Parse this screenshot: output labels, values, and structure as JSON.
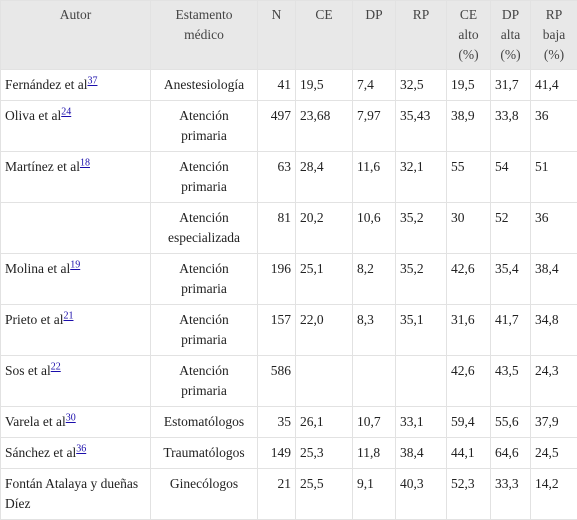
{
  "table": {
    "headers": [
      "Autor",
      "Estamento médico",
      "N",
      "CE",
      "DP",
      "RP",
      "CE alto (%)",
      "DP alta (%)",
      "RP baja (%)"
    ],
    "rows": [
      [
        {
          "name": "Fernández et al",
          "ref": "37"
        },
        "Anestesiología",
        "41",
        "19,5",
        "7,4",
        "32,5",
        "19,5",
        "31,7",
        "41,4"
      ],
      [
        {
          "name": "Oliva et al",
          "ref": "24"
        },
        "Atención primaria",
        "497",
        "23,68",
        "7,97",
        "35,43",
        "38,9",
        "33,8",
        "36"
      ],
      [
        {
          "name": "Martínez et al",
          "ref": "18"
        },
        "Atención primaria",
        "63",
        "28,4",
        "11,6",
        "32,1",
        "55",
        "54",
        "51"
      ],
      [
        null,
        "Atención especializada",
        "81",
        "20,2",
        "10,6",
        "35,2",
        "30",
        "52",
        "36"
      ],
      [
        {
          "name": "Molina et al",
          "ref": "19"
        },
        "Atención primaria",
        "196",
        "25,1",
        "8,2",
        "35,2",
        "42,6",
        "35,4",
        "38,4"
      ],
      [
        {
          "name": "Prieto et al",
          "ref": "21"
        },
        "Atención primaria",
        "157",
        "22,0",
        "8,3",
        "35,1",
        "31,6",
        "41,7",
        "34,8"
      ],
      [
        {
          "name": "Sos et al",
          "ref": "22"
        },
        "Atención primaria",
        "586",
        null,
        null,
        null,
        "42,6",
        "43,5",
        "24,3"
      ],
      [
        {
          "name": "Varela et al",
          "ref": "30"
        },
        "Estomatólogos",
        "35",
        "26,1",
        "10,7",
        "33,1",
        "59,4",
        "55,6",
        "37,9"
      ],
      [
        {
          "name": "Sánchez et al",
          "ref": "36"
        },
        "Traumatólogos",
        "149",
        "25,3",
        "11,8",
        "38,4",
        "44,1",
        "64,6",
        "24,5"
      ],
      [
        {
          "name": "Fontán Atalaya y dueñas Díez"
        },
        "Ginecólogos",
        "21",
        "25,5",
        "9,1",
        "40,3",
        "52,3",
        "33,3",
        "14,2"
      ]
    ]
  }
}
